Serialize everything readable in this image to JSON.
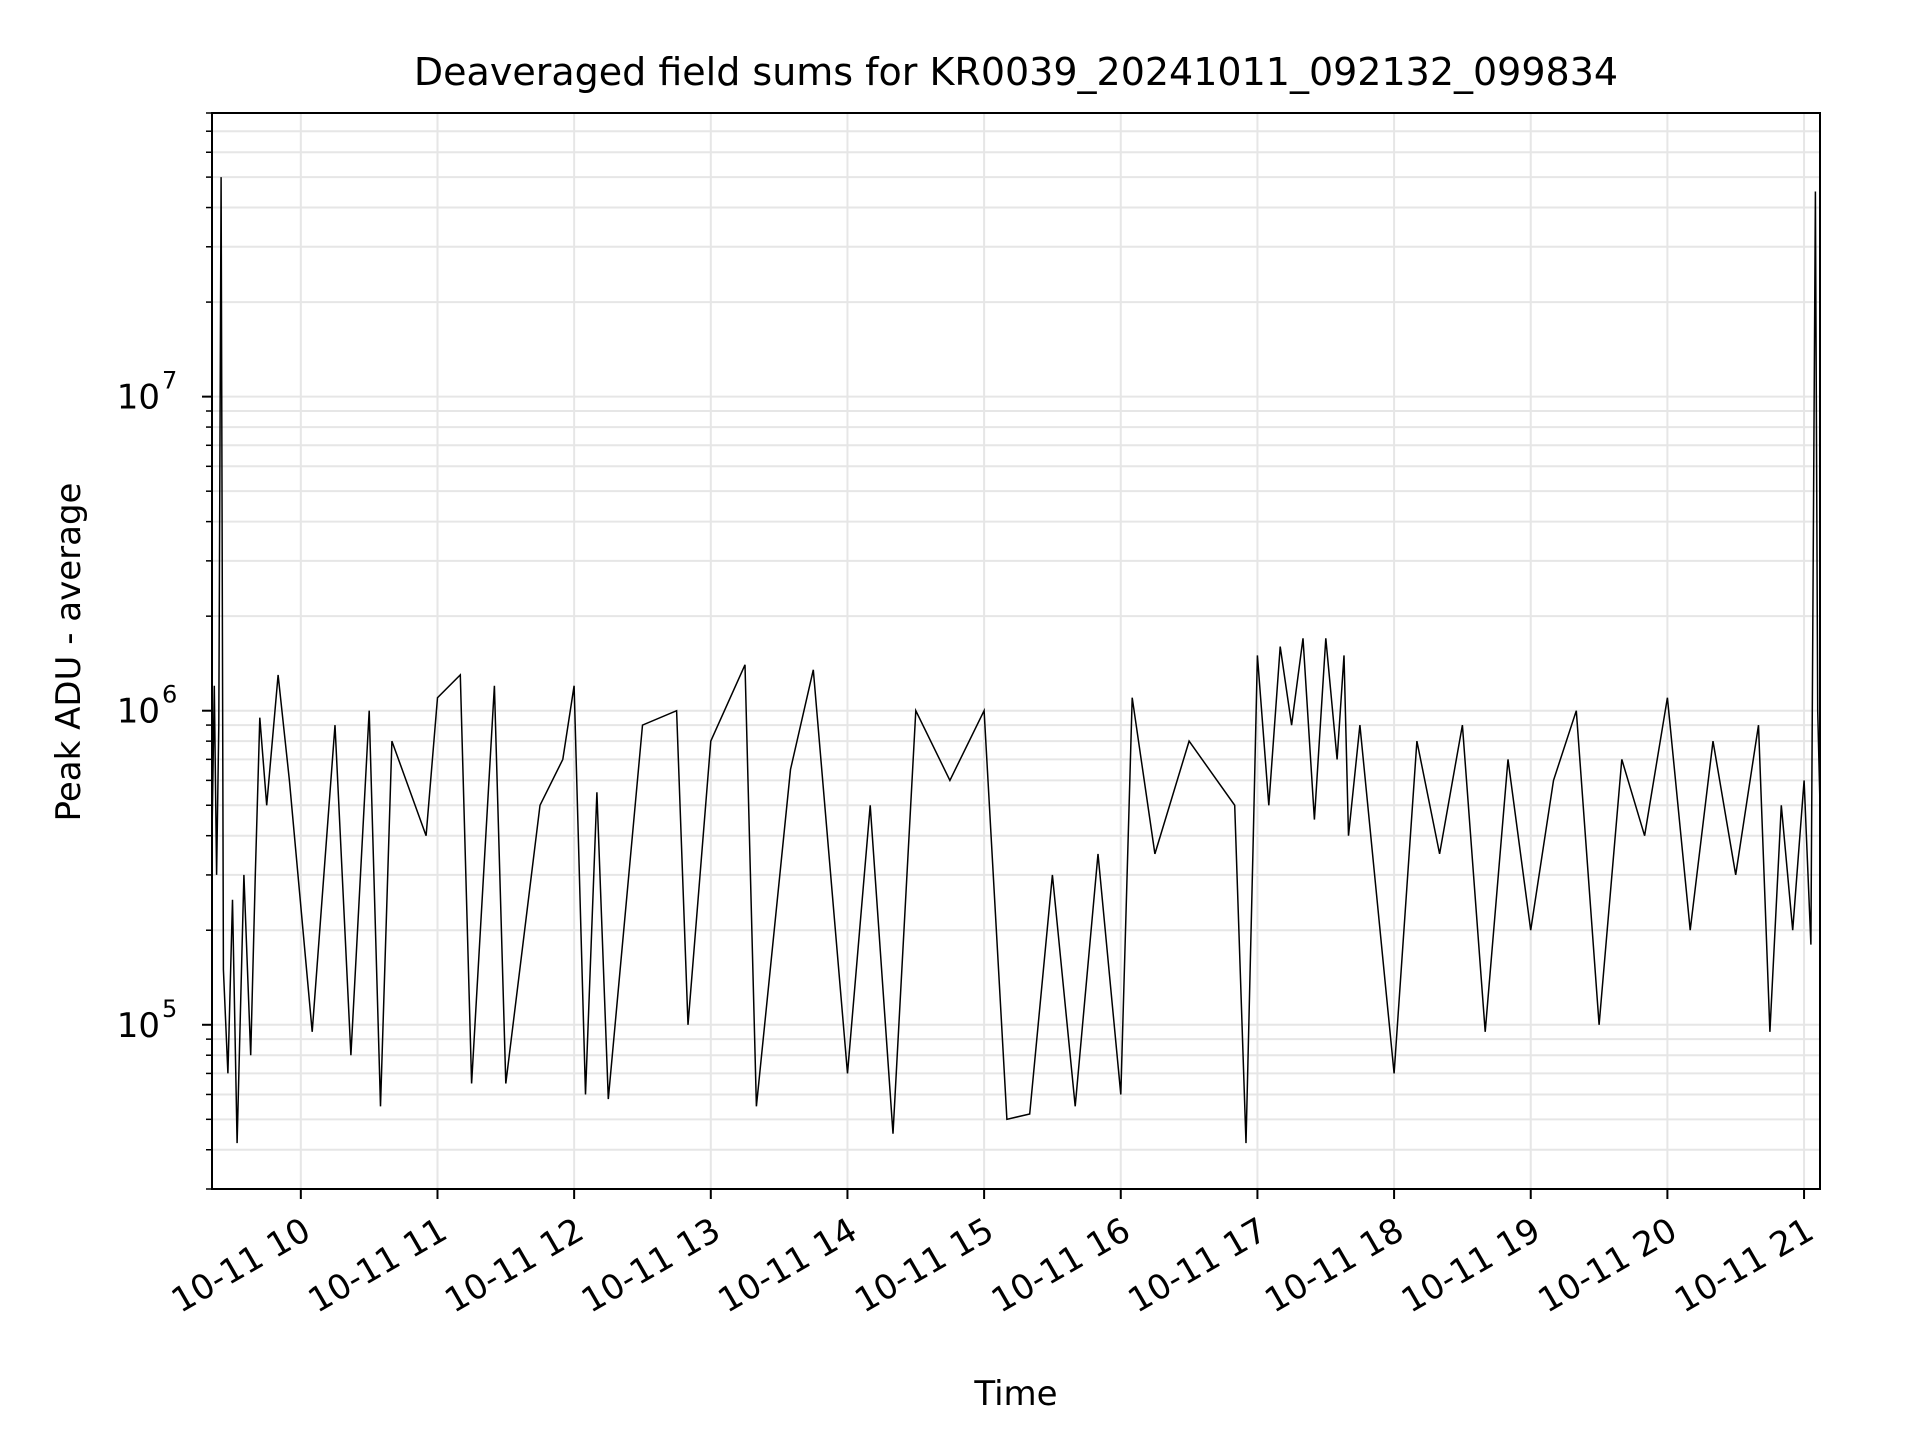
{
  "chart_data": {
    "type": "line",
    "title": "Deaveraged field sums for KR0039_20241011_092132_099834",
    "xlabel": "Time",
    "ylabel": "Peak ADU - average",
    "y_scale": "log",
    "ylim": [
      30000,
      80000000
    ],
    "xlim": [
      "2024-10-11 09:21",
      "2024-10-11 21:07"
    ],
    "x_ticks": [
      {
        "x": "2024-10-11 10:00",
        "label": "10-11 10"
      },
      {
        "x": "2024-10-11 11:00",
        "label": "10-11 11"
      },
      {
        "x": "2024-10-11 12:00",
        "label": "10-11 12"
      },
      {
        "x": "2024-10-11 13:00",
        "label": "10-11 13"
      },
      {
        "x": "2024-10-11 14:00",
        "label": "10-11 14"
      },
      {
        "x": "2024-10-11 15:00",
        "label": "10-11 15"
      },
      {
        "x": "2024-10-11 16:00",
        "label": "10-11 16"
      },
      {
        "x": "2024-10-11 17:00",
        "label": "10-11 17"
      },
      {
        "x": "2024-10-11 18:00",
        "label": "10-11 18"
      },
      {
        "x": "2024-10-11 19:00",
        "label": "10-11 19"
      },
      {
        "x": "2024-10-11 20:00",
        "label": "10-11 20"
      },
      {
        "x": "2024-10-11 21:00",
        "label": "10-11 21"
      }
    ],
    "y_ticks": [
      {
        "value": 100000,
        "base": "10",
        "exp": "5"
      },
      {
        "value": 1000000,
        "base": "10",
        "exp": "6"
      },
      {
        "value": 10000000,
        "base": "10",
        "exp": "7"
      }
    ],
    "grid": true,
    "series_color": "#000000",
    "series": [
      {
        "points": [
          [
            "2024-10-11 09:21",
            400000
          ],
          [
            "2024-10-11 09:22",
            1200000
          ],
          [
            "2024-10-11 09:23",
            300000
          ],
          [
            "2024-10-11 09:24",
            900000
          ],
          [
            "2024-10-11 09:25",
            50000000
          ],
          [
            "2024-10-11 09:26",
            150000
          ],
          [
            "2024-10-11 09:28",
            70000
          ],
          [
            "2024-10-11 09:30",
            250000
          ],
          [
            "2024-10-11 09:32",
            42000
          ],
          [
            "2024-10-11 09:35",
            300000
          ],
          [
            "2024-10-11 09:38",
            80000
          ],
          [
            "2024-10-11 09:40",
            300000
          ],
          [
            "2024-10-11 09:42",
            950000
          ],
          [
            "2024-10-11 09:45",
            500000
          ],
          [
            "2024-10-11 09:50",
            1300000
          ],
          [
            "2024-10-11 09:55",
            600000
          ],
          [
            "2024-10-11 10:05",
            95000
          ],
          [
            "2024-10-11 10:15",
            900000
          ],
          [
            "2024-10-11 10:22",
            80000
          ],
          [
            "2024-10-11 10:30",
            1000000
          ],
          [
            "2024-10-11 10:35",
            55000
          ],
          [
            "2024-10-11 10:40",
            800000
          ],
          [
            "2024-10-11 10:55",
            400000
          ],
          [
            "2024-10-11 11:00",
            1100000
          ],
          [
            "2024-10-11 11:10",
            1300000
          ],
          [
            "2024-10-11 11:15",
            65000
          ],
          [
            "2024-10-11 11:25",
            1200000
          ],
          [
            "2024-10-11 11:30",
            65000
          ],
          [
            "2024-10-11 11:45",
            500000
          ],
          [
            "2024-10-11 11:55",
            700000
          ],
          [
            "2024-10-11 12:00",
            1200000
          ],
          [
            "2024-10-11 12:05",
            60000
          ],
          [
            "2024-10-11 12:10",
            550000
          ],
          [
            "2024-10-11 12:15",
            58000
          ],
          [
            "2024-10-11 12:30",
            900000
          ],
          [
            "2024-10-11 12:45",
            1000000
          ],
          [
            "2024-10-11 12:50",
            100000
          ],
          [
            "2024-10-11 13:00",
            800000
          ],
          [
            "2024-10-11 13:15",
            1400000
          ],
          [
            "2024-10-11 13:20",
            55000
          ],
          [
            "2024-10-11 13:35",
            650000
          ],
          [
            "2024-10-11 13:45",
            1350000
          ],
          [
            "2024-10-11 14:00",
            70000
          ],
          [
            "2024-10-11 14:10",
            500000
          ],
          [
            "2024-10-11 14:20",
            45000
          ],
          [
            "2024-10-11 14:30",
            1000000
          ],
          [
            "2024-10-11 14:45",
            600000
          ],
          [
            "2024-10-11 15:00",
            1000000
          ],
          [
            "2024-10-11 15:10",
            50000
          ],
          [
            "2024-10-11 15:20",
            52000
          ],
          [
            "2024-10-11 15:30",
            300000
          ],
          [
            "2024-10-11 15:40",
            55000
          ],
          [
            "2024-10-11 15:50",
            350000
          ],
          [
            "2024-10-11 16:00",
            60000
          ],
          [
            "2024-10-11 16:05",
            1100000
          ],
          [
            "2024-10-11 16:15",
            350000
          ],
          [
            "2024-10-11 16:30",
            800000
          ],
          [
            "2024-10-11 16:50",
            500000
          ],
          [
            "2024-10-11 16:55",
            42000
          ],
          [
            "2024-10-11 16:58",
            350000
          ],
          [
            "2024-10-11 17:00",
            1500000
          ],
          [
            "2024-10-11 17:05",
            500000
          ],
          [
            "2024-10-11 17:10",
            1600000
          ],
          [
            "2024-10-11 17:15",
            900000
          ],
          [
            "2024-10-11 17:20",
            1700000
          ],
          [
            "2024-10-11 17:25",
            450000
          ],
          [
            "2024-10-11 17:30",
            1700000
          ],
          [
            "2024-10-11 17:35",
            700000
          ],
          [
            "2024-10-11 17:38",
            1500000
          ],
          [
            "2024-10-11 17:40",
            400000
          ],
          [
            "2024-10-11 17:45",
            900000
          ],
          [
            "2024-10-11 18:00",
            70000
          ],
          [
            "2024-10-11 18:10",
            800000
          ],
          [
            "2024-10-11 18:20",
            350000
          ],
          [
            "2024-10-11 18:30",
            900000
          ],
          [
            "2024-10-11 18:40",
            95000
          ],
          [
            "2024-10-11 18:50",
            700000
          ],
          [
            "2024-10-11 19:00",
            200000
          ],
          [
            "2024-10-11 19:10",
            600000
          ],
          [
            "2024-10-11 19:20",
            1000000
          ],
          [
            "2024-10-11 19:30",
            100000
          ],
          [
            "2024-10-11 19:40",
            700000
          ],
          [
            "2024-10-11 19:50",
            400000
          ],
          [
            "2024-10-11 20:00",
            1100000
          ],
          [
            "2024-10-11 20:10",
            200000
          ],
          [
            "2024-10-11 20:20",
            800000
          ],
          [
            "2024-10-11 20:30",
            300000
          ],
          [
            "2024-10-11 20:40",
            900000
          ],
          [
            "2024-10-11 20:45",
            95000
          ],
          [
            "2024-10-11 20:50",
            500000
          ],
          [
            "2024-10-11 20:55",
            200000
          ],
          [
            "2024-10-11 21:00",
            600000
          ],
          [
            "2024-10-11 21:03",
            180000
          ],
          [
            "2024-10-11 21:05",
            45000000
          ],
          [
            "2024-10-11 21:06",
            1000000
          ],
          [
            "2024-10-11 21:07",
            500000
          ]
        ]
      }
    ]
  }
}
